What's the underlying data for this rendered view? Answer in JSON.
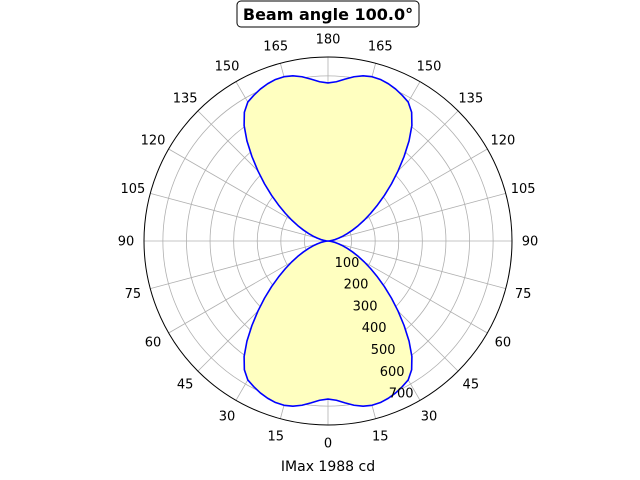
{
  "chart_data": {
    "type": "polar",
    "title": "Beam angle 100.0°",
    "xlabel": "IMax 1988 cd",
    "angular_tick_labels": [
      "0",
      "15",
      "30",
      "45",
      "60",
      "75",
      "90",
      "105",
      "120",
      "135",
      "150",
      "165",
      "180",
      "165",
      "150",
      "135",
      "120",
      "105",
      "90",
      "75",
      "60",
      "45",
      "30",
      "15"
    ],
    "radial_tick_labels": [
      "100",
      "200",
      "300",
      "400",
      "500",
      "600",
      "700"
    ],
    "radial_ticks": [
      100,
      200,
      300,
      400,
      500,
      600,
      700
    ],
    "rmax": 780,
    "grid": true,
    "series": [
      {
        "curve_color": "#0000ff",
        "fill_color": "#ffffc0",
        "angles_deg": [
          0,
          3,
          6,
          9,
          12,
          15,
          18,
          21,
          24,
          27,
          30,
          33,
          36,
          39,
          42,
          45,
          48,
          51,
          54,
          57,
          60,
          63,
          66,
          69,
          72,
          75,
          78,
          81,
          84,
          87,
          90
        ],
        "values": [
          670,
          676,
          690,
          705,
          716,
          721,
          720,
          714,
          705,
          693,
          680,
          651,
          605,
          546,
          482,
          420,
          362,
          308,
          259,
          216,
          178,
          144,
          114,
          88,
          66,
          47,
          31,
          19,
          9,
          3,
          0
        ],
        "symmetry": "mirrored to all four quadrants"
      }
    ]
  }
}
